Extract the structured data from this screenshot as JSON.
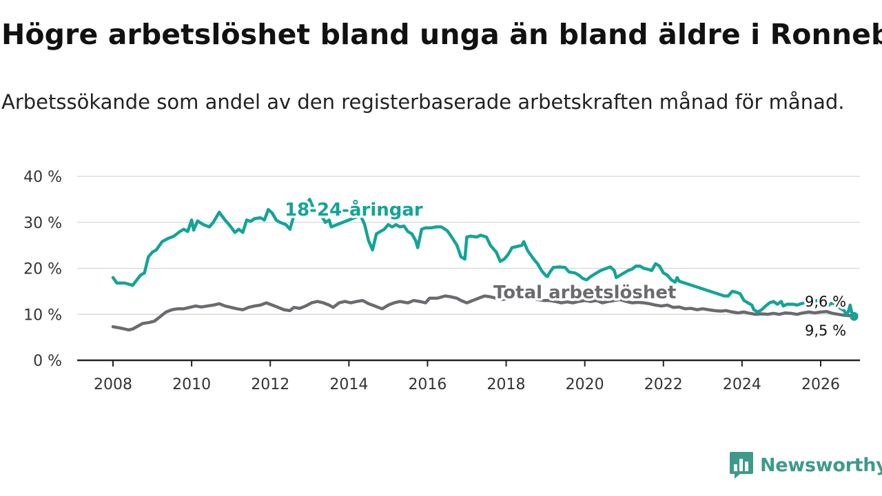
{
  "title": "Högre arbetslöshet bland unga än bland äldre i Ronneby",
  "subtitle": "Arbetssökande som andel av den registerbaserade arbetskraften månad för månad.",
  "brand": {
    "name": "Newsworthy",
    "icon": "bar-chart-speech-bubble-icon",
    "color": "#3d9a8b"
  },
  "chart_data": {
    "type": "line",
    "xlim": [
      2007.1,
      2026.9
    ],
    "ylim": [
      0,
      40
    ],
    "y_ticks": [
      0,
      10,
      20,
      30,
      40
    ],
    "y_tick_labels": [
      "0 %",
      "10 %",
      "20 %",
      "30 %",
      "40 %"
    ],
    "x_ticks": [
      2008,
      2010,
      2012,
      2014,
      2016,
      2018,
      2020,
      2022,
      2024,
      2026
    ],
    "x_tick_labels": [
      "2008",
      "2010",
      "2012",
      "2014",
      "2016",
      "2018",
      "2020",
      "2022",
      "2024",
      "2026"
    ],
    "grid": true,
    "series": [
      {
        "name": "18-24-åringar",
        "label": "18-24-åringar",
        "color": "#13a497",
        "end_label": "9,6 %",
        "points": [
          [
            2008.0,
            18.0
          ],
          [
            2008.1,
            16.8
          ],
          [
            2008.3,
            16.8
          ],
          [
            2008.5,
            16.3
          ],
          [
            2008.7,
            18.5
          ],
          [
            2008.8,
            19.0
          ],
          [
            2008.9,
            22.5
          ],
          [
            2009.0,
            23.5
          ],
          [
            2009.1,
            24.0
          ],
          [
            2009.25,
            25.8
          ],
          [
            2009.4,
            26.5
          ],
          [
            2009.55,
            27.0
          ],
          [
            2009.7,
            28.0
          ],
          [
            2009.8,
            28.5
          ],
          [
            2009.9,
            28.0
          ],
          [
            2010.0,
            30.5
          ],
          [
            2010.05,
            28.3
          ],
          [
            2010.15,
            30.3
          ],
          [
            2010.3,
            29.5
          ],
          [
            2010.45,
            29.0
          ],
          [
            2010.55,
            30.0
          ],
          [
            2010.7,
            32.2
          ],
          [
            2010.85,
            30.5
          ],
          [
            2011.0,
            29.0
          ],
          [
            2011.1,
            27.8
          ],
          [
            2011.2,
            28.5
          ],
          [
            2011.3,
            27.8
          ],
          [
            2011.4,
            30.5
          ],
          [
            2011.5,
            30.2
          ],
          [
            2011.6,
            30.8
          ],
          [
            2011.75,
            31.0
          ],
          [
            2011.85,
            30.5
          ],
          [
            2011.95,
            32.8
          ],
          [
            2012.05,
            32.0
          ],
          [
            2012.15,
            30.5
          ],
          [
            2012.25,
            30.0
          ],
          [
            2012.4,
            29.5
          ],
          [
            2012.5,
            28.5
          ],
          [
            2012.6,
            31.5
          ],
          [
            2012.7,
            31.5
          ],
          [
            2012.8,
            32.5
          ],
          [
            2012.9,
            33.5
          ],
          [
            2013.0,
            35.0
          ],
          [
            2013.1,
            33.0
          ],
          [
            2013.2,
            32.5
          ],
          [
            2013.3,
            31.5
          ],
          [
            2013.4,
            30.0
          ],
          [
            2013.5,
            30.5
          ],
          [
            2013.55,
            29.0
          ],
          [
            2014.3,
            31.5
          ],
          [
            2014.4,
            29.5
          ],
          [
            2014.5,
            26.0
          ],
          [
            2014.6,
            24.0
          ],
          [
            2014.7,
            27.5
          ],
          [
            2014.8,
            28.0
          ],
          [
            2014.9,
            28.5
          ],
          [
            2015.0,
            29.5
          ],
          [
            2015.1,
            29.0
          ],
          [
            2015.2,
            29.5
          ],
          [
            2015.3,
            29.0
          ],
          [
            2015.4,
            29.2
          ],
          [
            2015.5,
            28.0
          ],
          [
            2015.6,
            27.5
          ],
          [
            2015.7,
            26.0
          ],
          [
            2015.75,
            24.5
          ],
          [
            2015.85,
            28.5
          ],
          [
            2015.95,
            28.8
          ],
          [
            2016.1,
            28.8
          ],
          [
            2016.2,
            29.0
          ],
          [
            2016.35,
            29.0
          ],
          [
            2016.5,
            28.2
          ],
          [
            2016.6,
            27.0
          ],
          [
            2016.75,
            25.0
          ],
          [
            2016.85,
            22.5
          ],
          [
            2016.95,
            22.0
          ],
          [
            2017.0,
            26.8
          ],
          [
            2017.1,
            27.0
          ],
          [
            2017.25,
            26.8
          ],
          [
            2017.35,
            27.2
          ],
          [
            2017.5,
            26.8
          ],
          [
            2017.6,
            25.0
          ],
          [
            2017.75,
            23.5
          ],
          [
            2017.85,
            21.5
          ],
          [
            2017.95,
            22.0
          ],
          [
            2018.05,
            23.0
          ],
          [
            2018.15,
            24.5
          ],
          [
            2018.3,
            24.8
          ],
          [
            2018.4,
            25.0
          ],
          [
            2018.45,
            25.8
          ],
          [
            2018.55,
            23.8
          ],
          [
            2018.7,
            22.0
          ],
          [
            2018.8,
            21.0
          ],
          [
            2018.9,
            19.5
          ],
          [
            2019.0,
            18.5
          ],
          [
            2019.05,
            18.2
          ],
          [
            2019.1,
            19.0
          ],
          [
            2019.2,
            20.2
          ],
          [
            2019.35,
            20.3
          ],
          [
            2019.5,
            20.2
          ],
          [
            2019.6,
            19.2
          ],
          [
            2019.75,
            19.0
          ],
          [
            2019.85,
            18.5
          ],
          [
            2019.95,
            17.8
          ],
          [
            2020.05,
            17.5
          ],
          [
            2020.15,
            18.2
          ],
          [
            2020.3,
            19.0
          ],
          [
            2020.4,
            19.5
          ],
          [
            2020.55,
            20.0
          ],
          [
            2020.65,
            20.3
          ],
          [
            2020.75,
            19.5
          ],
          [
            2020.8,
            18.0
          ],
          [
            2020.9,
            18.5
          ],
          [
            2021.0,
            19.0
          ],
          [
            2021.1,
            19.5
          ],
          [
            2021.2,
            19.8
          ],
          [
            2021.3,
            20.5
          ],
          [
            2021.4,
            20.5
          ],
          [
            2021.5,
            20.0
          ],
          [
            2021.6,
            19.8
          ],
          [
            2021.7,
            19.5
          ],
          [
            2021.8,
            21.0
          ],
          [
            2021.9,
            20.5
          ],
          [
            2022.0,
            19.0
          ],
          [
            2022.1,
            18.5
          ],
          [
            2022.2,
            17.5
          ],
          [
            2022.3,
            17.0
          ],
          [
            2022.35,
            18.0
          ],
          [
            2022.4,
            17.2
          ],
          [
            2023.55,
            14.0
          ],
          [
            2023.65,
            14.0
          ],
          [
            2023.75,
            15.0
          ],
          [
            2023.85,
            14.8
          ],
          [
            2023.95,
            14.5
          ],
          [
            2024.05,
            13.0
          ],
          [
            2024.15,
            12.5
          ],
          [
            2024.25,
            12.0
          ],
          [
            2024.3,
            11.0
          ],
          [
            2024.4,
            10.5
          ],
          [
            2024.5,
            11.0
          ],
          [
            2024.6,
            11.8
          ],
          [
            2024.7,
            12.5
          ],
          [
            2024.8,
            12.8
          ],
          [
            2024.9,
            12.2
          ],
          [
            2025.0,
            12.8
          ],
          [
            2025.05,
            11.8
          ],
          [
            2025.15,
            12.2
          ],
          [
            2025.3,
            12.2
          ],
          [
            2025.4,
            12.0
          ],
          [
            2025.5,
            12.3
          ],
          [
            2025.6,
            12.5
          ],
          [
            2025.7,
            12.8
          ],
          [
            2025.8,
            12.3
          ],
          [
            2025.9,
            13.0
          ],
          [
            2026.0,
            12.5
          ],
          [
            2026.1,
            12.8
          ],
          [
            2026.2,
            12.0
          ],
          [
            2026.3,
            12.5
          ],
          [
            2026.4,
            11.8
          ],
          [
            2026.5,
            11.3
          ],
          [
            2026.6,
            10.8
          ],
          [
            2026.65,
            10.0
          ],
          [
            2026.7,
            10.5
          ],
          [
            2026.75,
            12.0
          ],
          [
            2026.8,
            10.0
          ],
          [
            2026.85,
            9.6
          ]
        ]
      },
      {
        "name": "Total arbetslöshet",
        "label": "Total arbetslöshet",
        "color": "#6b6a6f",
        "end_label": "9,5 %",
        "points": [
          [
            2008.0,
            7.3
          ],
          [
            2008.2,
            7.0
          ],
          [
            2008.4,
            6.6
          ],
          [
            2008.5,
            6.8
          ],
          [
            2008.65,
            7.5
          ],
          [
            2008.75,
            8.0
          ],
          [
            2008.9,
            8.2
          ],
          [
            2009.05,
            8.5
          ],
          [
            2009.2,
            9.5
          ],
          [
            2009.35,
            10.5
          ],
          [
            2009.5,
            11.0
          ],
          [
            2009.65,
            11.2
          ],
          [
            2009.8,
            11.2
          ],
          [
            2009.95,
            11.5
          ],
          [
            2010.1,
            11.8
          ],
          [
            2010.25,
            11.6
          ],
          [
            2010.4,
            11.8
          ],
          [
            2010.55,
            12.0
          ],
          [
            2010.7,
            12.3
          ],
          [
            2010.85,
            11.8
          ],
          [
            2011.0,
            11.5
          ],
          [
            2011.15,
            11.2
          ],
          [
            2011.3,
            11.0
          ],
          [
            2011.45,
            11.5
          ],
          [
            2011.6,
            11.8
          ],
          [
            2011.75,
            12.0
          ],
          [
            2011.9,
            12.5
          ],
          [
            2012.05,
            12.0
          ],
          [
            2012.2,
            11.5
          ],
          [
            2012.35,
            11.0
          ],
          [
            2012.5,
            10.8
          ],
          [
            2012.6,
            11.5
          ],
          [
            2012.75,
            11.3
          ],
          [
            2012.9,
            11.8
          ],
          [
            2013.05,
            12.5
          ],
          [
            2013.2,
            12.8
          ],
          [
            2013.35,
            12.5
          ],
          [
            2013.5,
            12.0
          ],
          [
            2013.6,
            11.5
          ],
          [
            2013.75,
            12.5
          ],
          [
            2013.9,
            12.8
          ],
          [
            2014.05,
            12.5
          ],
          [
            2014.2,
            12.8
          ],
          [
            2014.35,
            13.0
          ],
          [
            2014.5,
            12.3
          ],
          [
            2014.6,
            12.0
          ],
          [
            2014.75,
            11.5
          ],
          [
            2014.85,
            11.2
          ],
          [
            2015.0,
            12.0
          ],
          [
            2015.15,
            12.5
          ],
          [
            2015.3,
            12.8
          ],
          [
            2015.5,
            12.5
          ],
          [
            2015.65,
            13.0
          ],
          [
            2015.8,
            12.8
          ],
          [
            2015.95,
            12.5
          ],
          [
            2016.05,
            13.5
          ],
          [
            2016.25,
            13.5
          ],
          [
            2016.45,
            14.0
          ],
          [
            2016.6,
            13.8
          ],
          [
            2016.75,
            13.5
          ],
          [
            2016.85,
            13.0
          ],
          [
            2017.0,
            12.5
          ],
          [
            2017.15,
            13.0
          ],
          [
            2017.3,
            13.5
          ],
          [
            2017.45,
            14.0
          ],
          [
            2017.6,
            13.8
          ],
          [
            2017.75,
            13.5
          ],
          [
            2017.9,
            13.2
          ],
          [
            2018.05,
            13.5
          ],
          [
            2018.2,
            13.8
          ],
          [
            2018.35,
            14.0
          ],
          [
            2018.5,
            13.8
          ],
          [
            2018.65,
            13.5
          ],
          [
            2018.8,
            13.2
          ],
          [
            2018.95,
            13.0
          ],
          [
            2019.1,
            13.0
          ],
          [
            2019.25,
            12.8
          ],
          [
            2019.4,
            12.5
          ],
          [
            2019.55,
            12.7
          ],
          [
            2019.7,
            12.5
          ],
          [
            2019.85,
            12.8
          ],
          [
            2020.0,
            13.0
          ],
          [
            2020.15,
            12.8
          ],
          [
            2020.3,
            13.0
          ],
          [
            2020.45,
            12.5
          ],
          [
            2020.6,
            12.8
          ],
          [
            2020.75,
            13.0
          ],
          [
            2020.9,
            13.2
          ],
          [
            2021.05,
            12.8
          ],
          [
            2021.2,
            12.5
          ],
          [
            2021.35,
            12.6
          ],
          [
            2021.5,
            12.5
          ],
          [
            2021.65,
            12.3
          ],
          [
            2021.8,
            12.0
          ],
          [
            2021.95,
            11.8
          ],
          [
            2022.1,
            12.0
          ],
          [
            2022.25,
            11.5
          ],
          [
            2022.4,
            11.6
          ],
          [
            2022.55,
            11.2
          ],
          [
            2022.7,
            11.3
          ],
          [
            2022.85,
            11.0
          ],
          [
            2023.0,
            11.2
          ],
          [
            2023.15,
            11.0
          ],
          [
            2023.3,
            10.8
          ],
          [
            2023.45,
            10.7
          ],
          [
            2023.6,
            10.8
          ],
          [
            2023.75,
            10.5
          ],
          [
            2023.9,
            10.3
          ],
          [
            2024.05,
            10.5
          ],
          [
            2024.2,
            10.2
          ],
          [
            2024.35,
            10.0
          ],
          [
            2024.5,
            10.1
          ],
          [
            2024.65,
            10.0
          ],
          [
            2024.8,
            10.2
          ],
          [
            2024.95,
            10.0
          ],
          [
            2025.1,
            10.3
          ],
          [
            2025.25,
            10.2
          ],
          [
            2025.4,
            10.0
          ],
          [
            2025.55,
            10.3
          ],
          [
            2025.7,
            10.5
          ],
          [
            2025.85,
            10.3
          ],
          [
            2026.0,
            10.5
          ],
          [
            2026.15,
            10.6
          ],
          [
            2026.3,
            10.2
          ],
          [
            2026.45,
            10.0
          ],
          [
            2026.6,
            9.8
          ],
          [
            2026.75,
            9.7
          ],
          [
            2026.85,
            9.5
          ]
        ]
      }
    ]
  }
}
